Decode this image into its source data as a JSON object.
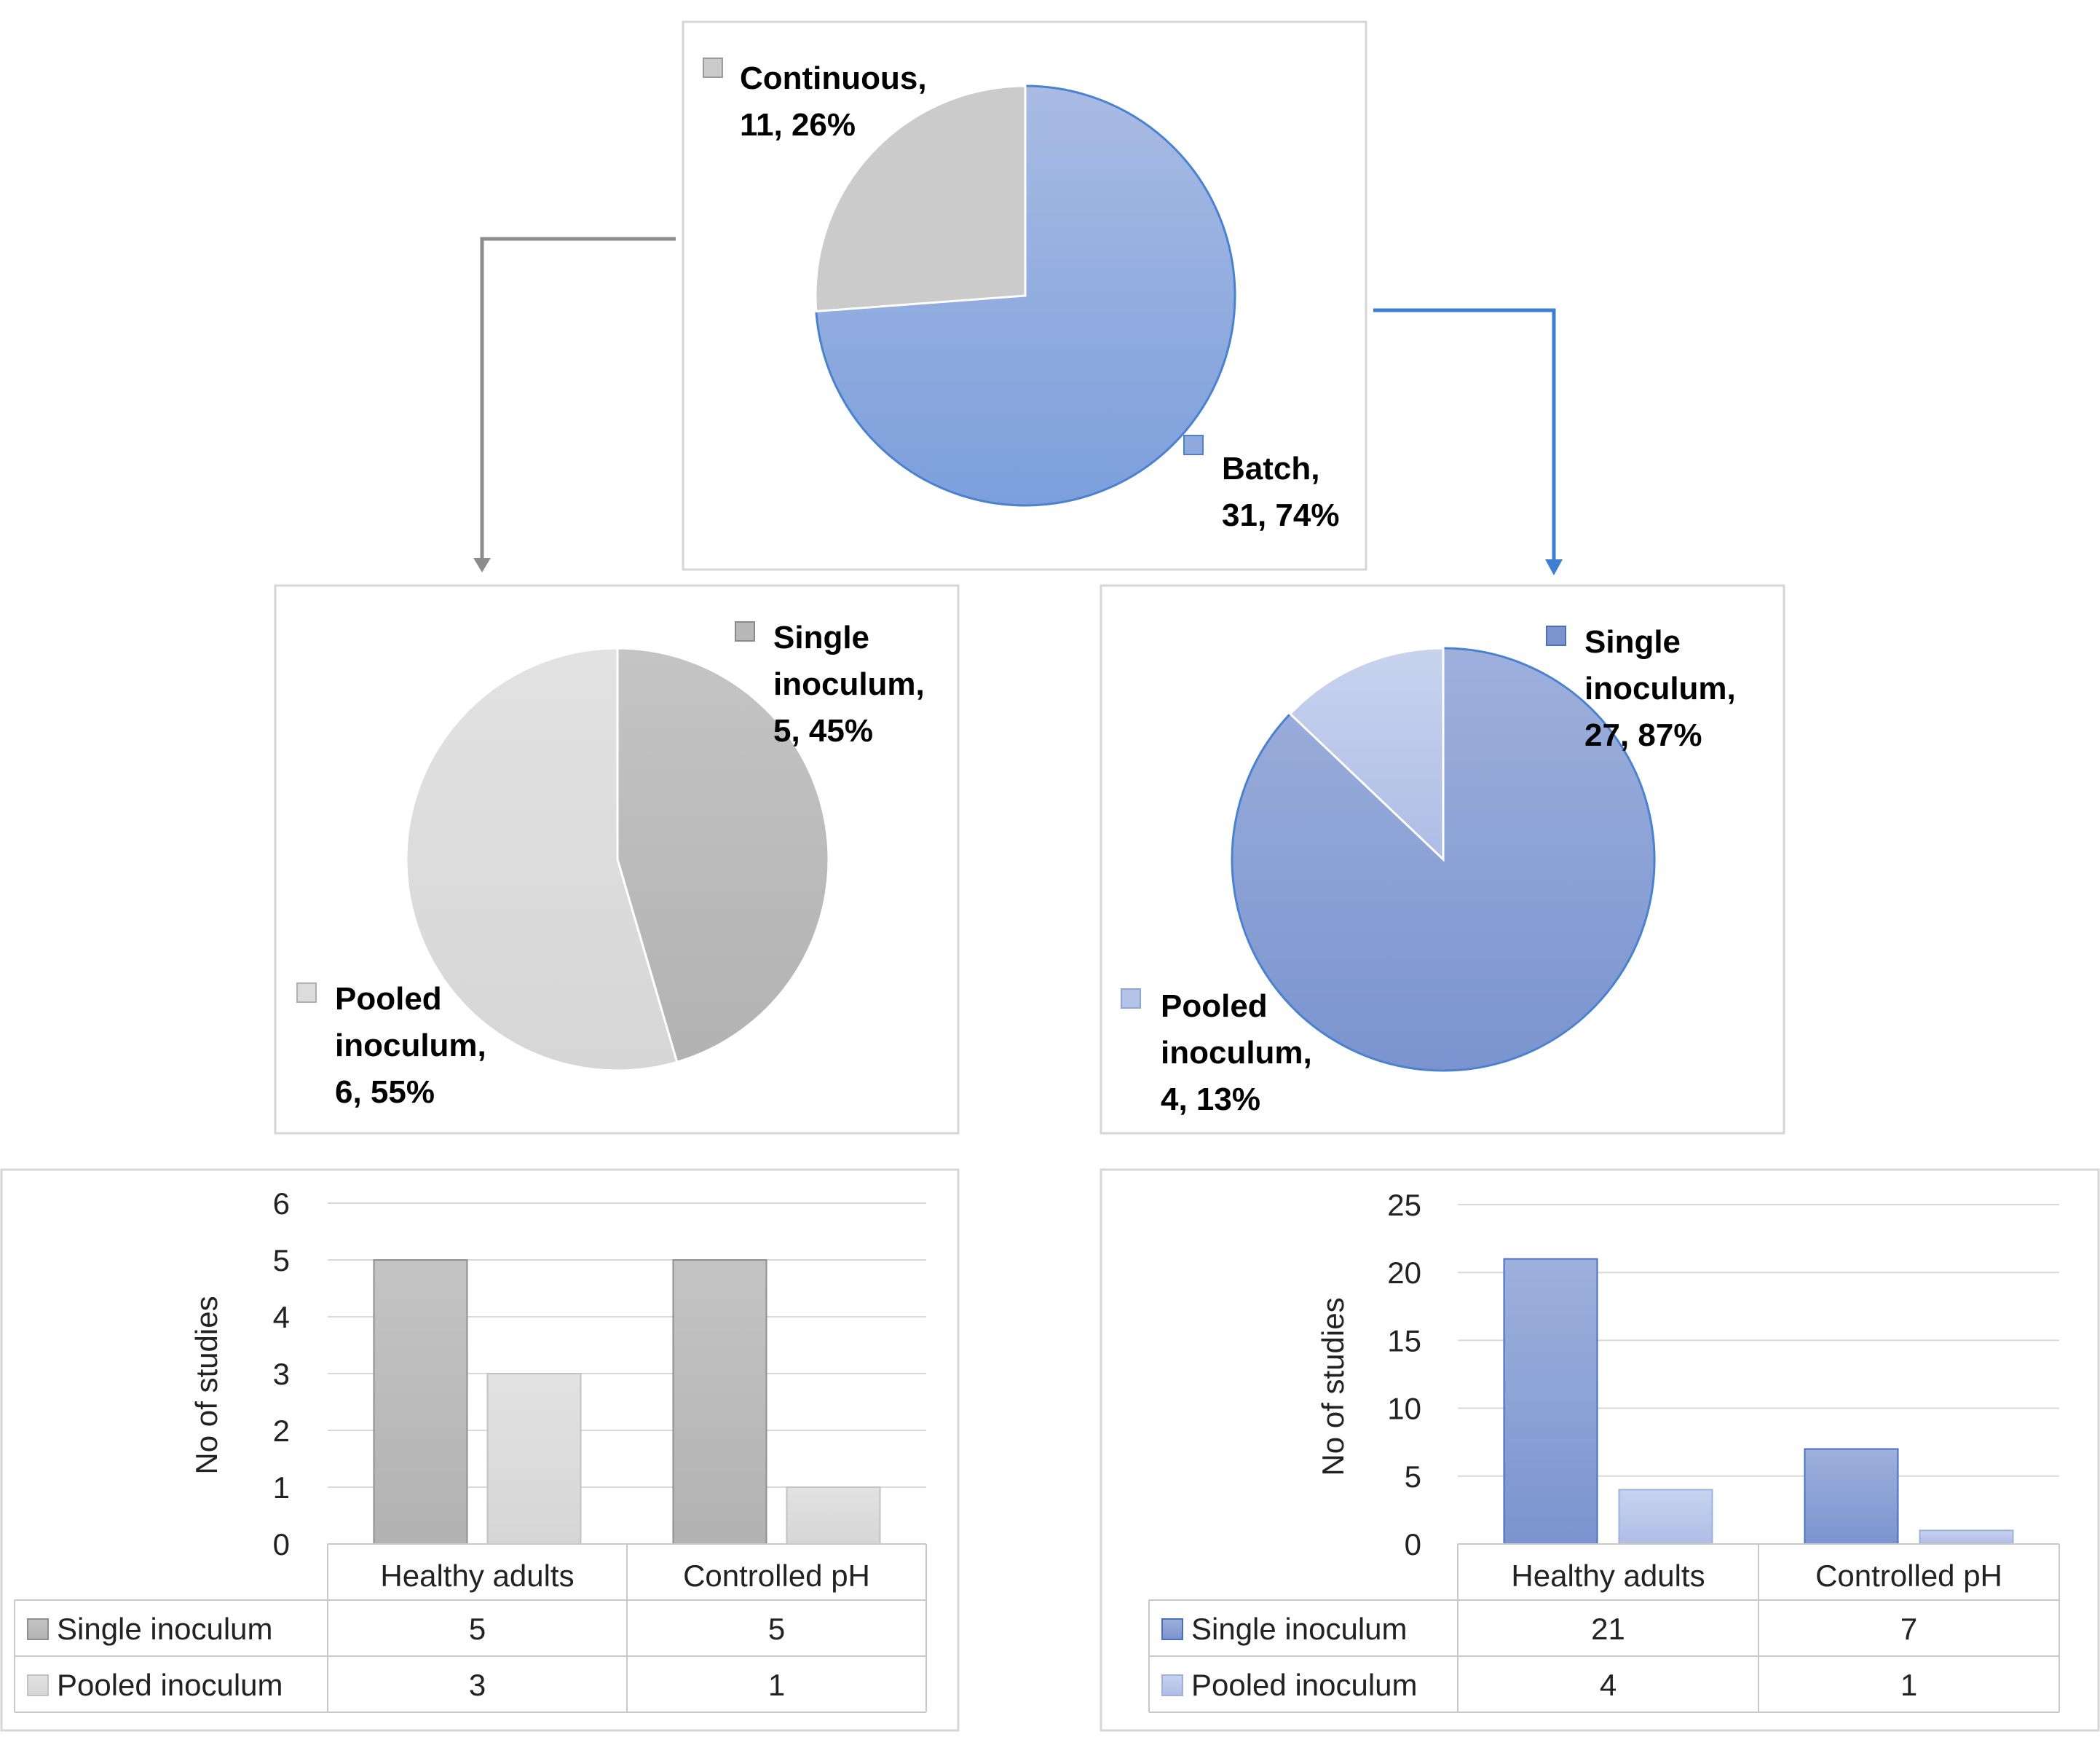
{
  "colors": {
    "gray_single": "#b8b8b8",
    "gray_pooled": "#dcdcdc",
    "gray_continuous": "#cbcbcb",
    "blue_batch": "#8da9dd",
    "blue_single": "#8aa0d4",
    "blue_pooled": "#b4c3e8",
    "blue_edge": "#4a82d0",
    "gray_arrow": "#8c8c8c"
  },
  "chart_data": [
    {
      "type": "pie",
      "id": "top",
      "slices": [
        {
          "name": "Continuous",
          "value": 11,
          "percent": "26%",
          "label_line1": "Continuous,",
          "label_line2": "11, 26%"
        },
        {
          "name": "Batch",
          "value": 31,
          "percent": "74%",
          "label_line1": "Batch,",
          "label_line2": "31, 74%"
        }
      ]
    },
    {
      "type": "pie",
      "id": "continuous-breakdown",
      "slices": [
        {
          "name": "Single inoculum",
          "value": 5,
          "percent": "45%",
          "label_line1": "Single",
          "label_line2": "inoculum,",
          "label_line3": "5, 45%"
        },
        {
          "name": "Pooled inoculum",
          "value": 6,
          "percent": "55%",
          "label_line1": "Pooled",
          "label_line2": "inoculum,",
          "label_line3": "6, 55%"
        }
      ]
    },
    {
      "type": "pie",
      "id": "batch-breakdown",
      "slices": [
        {
          "name": "Single inoculum",
          "value": 27,
          "percent": "87%",
          "label_line1": "Single",
          "label_line2": "inoculum,",
          "label_line3": "27, 87%"
        },
        {
          "name": "Pooled inoculum",
          "value": 4,
          "percent": "13%",
          "label_line1": "Pooled",
          "label_line2": "inoculum,",
          "label_line3": "4, 13%"
        }
      ]
    },
    {
      "type": "bar",
      "id": "continuous-bars",
      "categories": [
        "Healthy adults",
        "Controlled pH"
      ],
      "series": [
        {
          "name": "Single inoculum",
          "values": [
            5,
            5
          ]
        },
        {
          "name": "Pooled inoculum",
          "values": [
            3,
            1
          ]
        }
      ],
      "ylabel": "No of studies",
      "ylim": [
        0,
        6
      ],
      "yticks": [
        0,
        1,
        2,
        3,
        4,
        5,
        6
      ],
      "data_table": true
    },
    {
      "type": "bar",
      "id": "batch-bars",
      "categories": [
        "Healthy adults",
        "Controlled pH"
      ],
      "series": [
        {
          "name": "Single inoculum",
          "values": [
            21,
            7
          ]
        },
        {
          "name": "Pooled inoculum",
          "values": [
            4,
            1
          ]
        }
      ],
      "ylabel": "No of studies",
      "ylim": [
        0,
        25
      ],
      "yticks": [
        0,
        5,
        10,
        15,
        20,
        25
      ],
      "data_table": true
    }
  ]
}
